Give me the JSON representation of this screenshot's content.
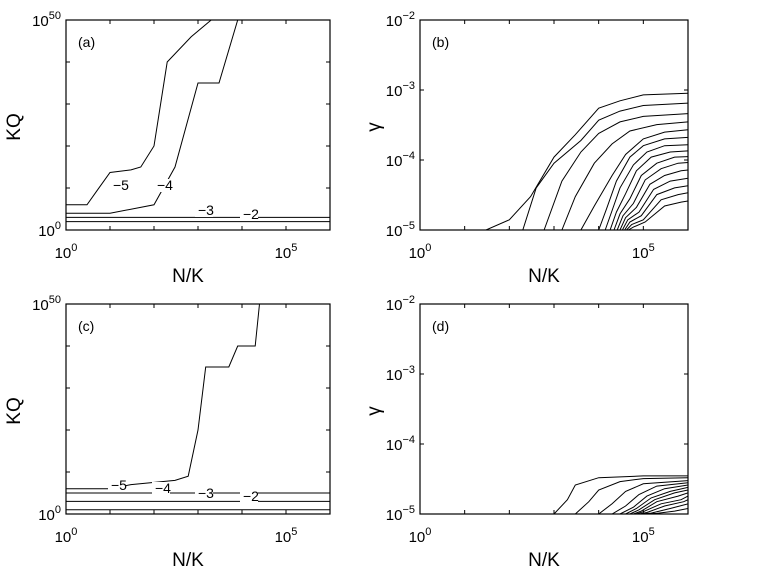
{
  "chart_data": [
    {
      "panel": "(a)",
      "type": "line",
      "subtype": "contour",
      "xlabel": "N/K",
      "ylabel": "KQ",
      "x_scale": "log",
      "y_scale": "log",
      "xlim": [
        1,
        1000000
      ],
      "ylim": [
        1,
        1e+50
      ],
      "x_ticks": [
        {
          "base": "10",
          "exp": "0",
          "value": 1
        },
        {
          "base": "10",
          "exp": "5",
          "value": 100000
        }
      ],
      "y_ticks": [
        {
          "base": "10",
          "exp": "0",
          "value": 1
        },
        {
          "base": "10",
          "exp": "50",
          "value": 1e+50
        }
      ],
      "series": [
        {
          "label": "−5",
          "x": [
            1,
            3,
            5,
            10,
            30,
            50,
            100,
            200,
            700,
            2000
          ],
          "y": [
            1000000.0,
            1000000.0,
            2000000000.0,
            50000000000000.0,
            200000000000000.0,
            1000000000000000.0,
            1e+20,
            1e+40,
            1e+46,
            1e+50
          ]
        },
        {
          "label": "−4",
          "x": [
            1,
            10,
            100,
            300,
            1000,
            3000,
            8000
          ],
          "y": [
            10000.0,
            10000.0,
            1000000.0,
            1000000000000000.0,
            1e+35,
            1e+35,
            1e+50
          ]
        },
        {
          "label": "−3",
          "x": [
            1,
            1000000
          ],
          "y": [
            1000.0,
            1000.0
          ]
        },
        {
          "label": "−2",
          "x": [
            1,
            1000000
          ],
          "y": [
            100.0,
            100.0
          ]
        }
      ]
    },
    {
      "panel": "(b)",
      "type": "line",
      "subtype": "contour",
      "xlabel": "N/K",
      "ylabel": "γ",
      "x_scale": "log",
      "y_scale": "log",
      "xlim": [
        1,
        1000000
      ],
      "ylim": [
        1e-05,
        0.01
      ],
      "x_ticks": [
        {
          "base": "10",
          "exp": "0",
          "value": 1
        },
        {
          "base": "10",
          "exp": "5",
          "value": 100000
        }
      ],
      "y_ticks": [
        {
          "base": "10",
          "exp": "−5",
          "value": 1e-05
        },
        {
          "base": "10",
          "exp": "−4",
          "value": 0.0001
        },
        {
          "base": "10",
          "exp": "−3",
          "value": 0.001
        },
        {
          "base": "10",
          "exp": "−2",
          "value": 0.01
        }
      ],
      "series": [
        {
          "x": [
            30,
            100,
            300,
            1000,
            3000,
            10000,
            30000,
            100000,
            1000000
          ],
          "y": [
            1e-05,
            1.4e-05,
            3e-05,
            0.00011,
            0.00023,
            0.00055,
            0.0007,
            0.00085,
            0.0009
          ]
        },
        {
          "x": [
            200,
            400,
            1000,
            4000,
            10000,
            30000,
            100000,
            1000000
          ],
          "y": [
            1e-05,
            4e-05,
            9e-05,
            0.00019,
            0.00037,
            0.0005,
            0.0006,
            0.00065
          ]
        },
        {
          "x": [
            600,
            1500,
            4000,
            10000,
            30000,
            100000,
            1000000
          ],
          "y": [
            1e-05,
            5e-05,
            0.00013,
            0.00024,
            0.00035,
            0.00042,
            0.00046
          ]
        },
        {
          "x": [
            1500,
            3000,
            8000,
            20000,
            50000,
            200000,
            1000000
          ],
          "y": [
            1e-05,
            3e-05,
            9e-05,
            0.00017,
            0.00026,
            0.00032,
            0.00035
          ]
        },
        {
          "x": [
            4000,
            8000,
            20000,
            40000,
            100000,
            300000,
            1000000
          ],
          "y": [
            1e-05,
            2.2e-05,
            6e-05,
            0.00012,
            0.0002,
            0.00025,
            0.00027
          ]
        },
        {
          "x": [
            10000,
            15000,
            25000,
            50000,
            100000,
            300000,
            1000000
          ],
          "y": [
            1e-05,
            2e-05,
            5e-05,
            0.00011,
            0.00016,
            0.0002,
            0.00021
          ]
        },
        {
          "x": [
            14000,
            20000,
            30000,
            60000,
            120000,
            300000,
            1000000
          ],
          "y": [
            1e-05,
            1.9e-05,
            4e-05,
            8.5e-05,
            0.00013,
            0.00016,
            0.000165
          ]
        },
        {
          "x": [
            18000,
            25000,
            40000,
            70000,
            150000,
            400000,
            1000000
          ],
          "y": [
            1e-05,
            1.8e-05,
            3.3e-05,
            7e-05,
            0.00011,
            0.00013,
            0.000135
          ]
        },
        {
          "x": [
            22000,
            30000,
            50000,
            90000,
            200000,
            500000,
            1000000
          ],
          "y": [
            1e-05,
            1.7e-05,
            2.8e-05,
            6e-05,
            9e-05,
            0.00011,
            0.000112
          ]
        },
        {
          "x": [
            26000,
            35000,
            60000,
            110000,
            250000,
            600000,
            1000000
          ],
          "y": [
            1e-05,
            1.6e-05,
            2.4e-05,
            5.2e-05,
            7.5e-05,
            9e-05,
            9.2e-05
          ]
        },
        {
          "x": [
            30000,
            40000,
            70000,
            140000,
            300000,
            700000,
            1000000
          ],
          "y": [
            1e-05,
            1.5e-05,
            2.1e-05,
            4.5e-05,
            6e-05,
            7e-05,
            7.2e-05
          ]
        },
        {
          "x": [
            34000,
            45000,
            80000,
            170000,
            400000,
            1000000
          ],
          "y": [
            1e-05,
            1.4e-05,
            1.8e-05,
            3.8e-05,
            5e-05,
            5.5e-05
          ]
        },
        {
          "x": [
            38000,
            50000,
            90000,
            200000,
            500000,
            1000000
          ],
          "y": [
            1e-05,
            1.3e-05,
            1.6e-05,
            3.2e-05,
            4e-05,
            4.3e-05
          ]
        },
        {
          "x": [
            42000,
            55000,
            100000,
            250000,
            600000,
            1000000
          ],
          "y": [
            1e-05,
            1.2e-05,
            1.4e-05,
            2.7e-05,
            3.2e-05,
            3.4e-05
          ]
        },
        {
          "x": [
            46000,
            60000,
            110000,
            300000,
            700000,
            1000000
          ],
          "y": [
            1e-05,
            1.1e-05,
            1.3e-05,
            2.2e-05,
            2.5e-05,
            2.6e-05
          ]
        }
      ]
    },
    {
      "panel": "(c)",
      "type": "line",
      "subtype": "contour",
      "xlabel": "N/K",
      "ylabel": "KQ",
      "x_scale": "log",
      "y_scale": "log",
      "xlim": [
        1,
        1000000
      ],
      "ylim": [
        1,
        1e+50
      ],
      "x_ticks": [
        {
          "base": "10",
          "exp": "0",
          "value": 1
        },
        {
          "base": "10",
          "exp": "5",
          "value": 100000
        }
      ],
      "y_ticks": [
        {
          "base": "10",
          "exp": "0",
          "value": 1
        },
        {
          "base": "10",
          "exp": "50",
          "value": 1e+50
        }
      ],
      "series": [
        {
          "label": "−5",
          "x": [
            1,
            10,
            30,
            300,
            600,
            1000,
            1500,
            5000,
            8000,
            20000,
            25000
          ],
          "y": [
            1000000.0,
            1000000.0,
            10000000.0,
            100000000.0,
            1000000000.0,
            1e+20,
            1e+35,
            1e+35,
            1e+40,
            1e+40,
            1e+50
          ]
        },
        {
          "label": "−4",
          "x": [
            1,
            1000000
          ],
          "y": [
            100000.0,
            100000.0
          ]
        },
        {
          "label": "−3",
          "x": [
            1,
            1000000
          ],
          "y": [
            1000.0,
            1000.0
          ]
        },
        {
          "label": "−2",
          "x": [
            1,
            1000000
          ],
          "y": [
            10.0,
            10.0
          ]
        }
      ]
    },
    {
      "panel": "(d)",
      "type": "line",
      "subtype": "contour",
      "xlabel": "N/K",
      "ylabel": "γ",
      "x_scale": "log",
      "y_scale": "log",
      "xlim": [
        1,
        1000000
      ],
      "ylim": [
        1e-05,
        0.01
      ],
      "x_ticks": [
        {
          "base": "10",
          "exp": "0",
          "value": 1
        },
        {
          "base": "10",
          "exp": "5",
          "value": 100000
        }
      ],
      "y_ticks": [
        {
          "base": "10",
          "exp": "−5",
          "value": 1e-05
        },
        {
          "base": "10",
          "exp": "−4",
          "value": 0.0001
        },
        {
          "base": "10",
          "exp": "−3",
          "value": 0.001
        },
        {
          "base": "10",
          "exp": "−2",
          "value": 0.01
        }
      ],
      "series": [
        {
          "x": [
            1000,
            2000,
            3000,
            10000,
            100000,
            1000000
          ],
          "y": [
            1e-05,
            1.6e-05,
            2.6e-05,
            3.3e-05,
            3.5e-05,
            3.5e-05
          ]
        },
        {
          "x": [
            3000,
            6000,
            10000,
            30000,
            100000,
            1000000
          ],
          "y": [
            1e-05,
            1.5e-05,
            2.2e-05,
            2.9e-05,
            3.2e-05,
            3.3e-05
          ]
        },
        {
          "x": [
            10000,
            20000,
            40000,
            100000,
            1000000
          ],
          "y": [
            1e-05,
            1.4e-05,
            2.1e-05,
            2.7e-05,
            3e-05
          ]
        },
        {
          "x": [
            20000,
            40000,
            80000,
            200000,
            1000000
          ],
          "y": [
            1e-05,
            1.3e-05,
            1.9e-05,
            2.5e-05,
            2.8e-05
          ]
        },
        {
          "x": [
            30000,
            60000,
            120000,
            300000,
            1000000
          ],
          "y": [
            1e-05,
            1.25e-05,
            1.8e-05,
            2.3e-05,
            2.6e-05
          ]
        },
        {
          "x": [
            40000,
            70000,
            150000,
            400000,
            1000000
          ],
          "y": [
            1e-05,
            1.2e-05,
            1.7e-05,
            2.1e-05,
            2.4e-05
          ]
        },
        {
          "x": [
            50000,
            80000,
            180000,
            500000,
            1000000
          ],
          "y": [
            1e-05,
            1.15e-05,
            1.6e-05,
            2e-05,
            2.2e-05
          ]
        },
        {
          "x": [
            60000,
            90000,
            200000,
            600000,
            1000000
          ],
          "y": [
            1e-05,
            1.1e-05,
            1.5e-05,
            1.8e-05,
            2e-05
          ]
        },
        {
          "x": [
            70000,
            100000,
            250000,
            700000,
            1000000
          ],
          "y": [
            1e-05,
            1.08e-05,
            1.4e-05,
            1.6e-05,
            1.8e-05
          ]
        },
        {
          "x": [
            80000,
            120000,
            300000,
            800000,
            1000000
          ],
          "y": [
            1e-05,
            1.05e-05,
            1.3e-05,
            1.5e-05,
            1.6e-05
          ]
        },
        {
          "x": [
            90000,
            150000,
            400000,
            1000000
          ],
          "y": [
            1e-05,
            1.03e-05,
            1.2e-05,
            1.4e-05
          ]
        },
        {
          "x": [
            100000,
            200000,
            500000,
            1000000
          ],
          "y": [
            1e-05,
            1.02e-05,
            1.1e-05,
            1.2e-05
          ]
        }
      ]
    }
  ]
}
